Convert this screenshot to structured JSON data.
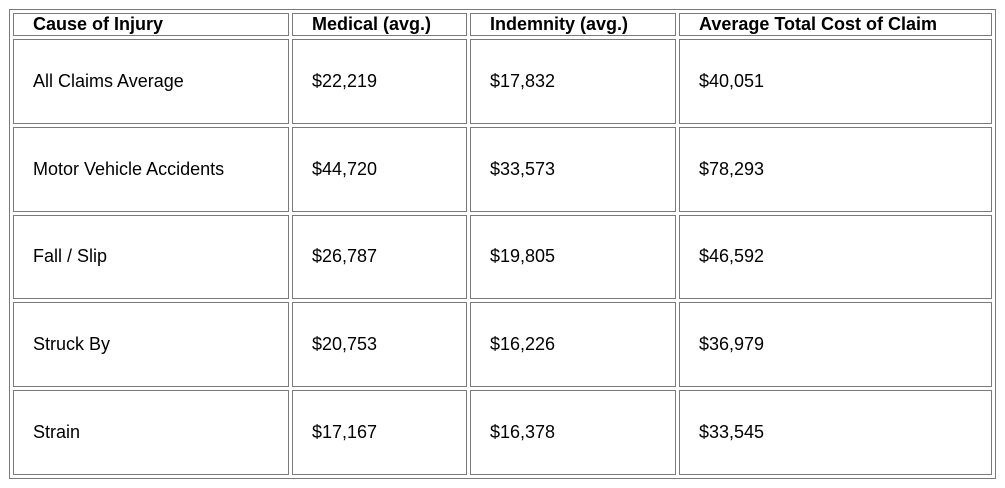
{
  "table": {
    "headers": [
      "Cause of Injury",
      "Medical (avg.)",
      "Indemnity (avg.)",
      "Average Total Cost of Claim"
    ],
    "rows": [
      [
        "All Claims Average",
        "$22,219",
        "$17,832",
        "$40,051"
      ],
      [
        "Motor Vehicle Accidents",
        "$44,720",
        "$33,573",
        "$78,293"
      ],
      [
        "Fall / Slip",
        "$26,787",
        "$19,805",
        "$46,592"
      ],
      [
        "Struck By",
        "$20,753",
        "$16,226",
        "$36,979"
      ],
      [
        "Strain",
        "$17,167",
        "$16,378",
        "$33,545"
      ]
    ]
  }
}
